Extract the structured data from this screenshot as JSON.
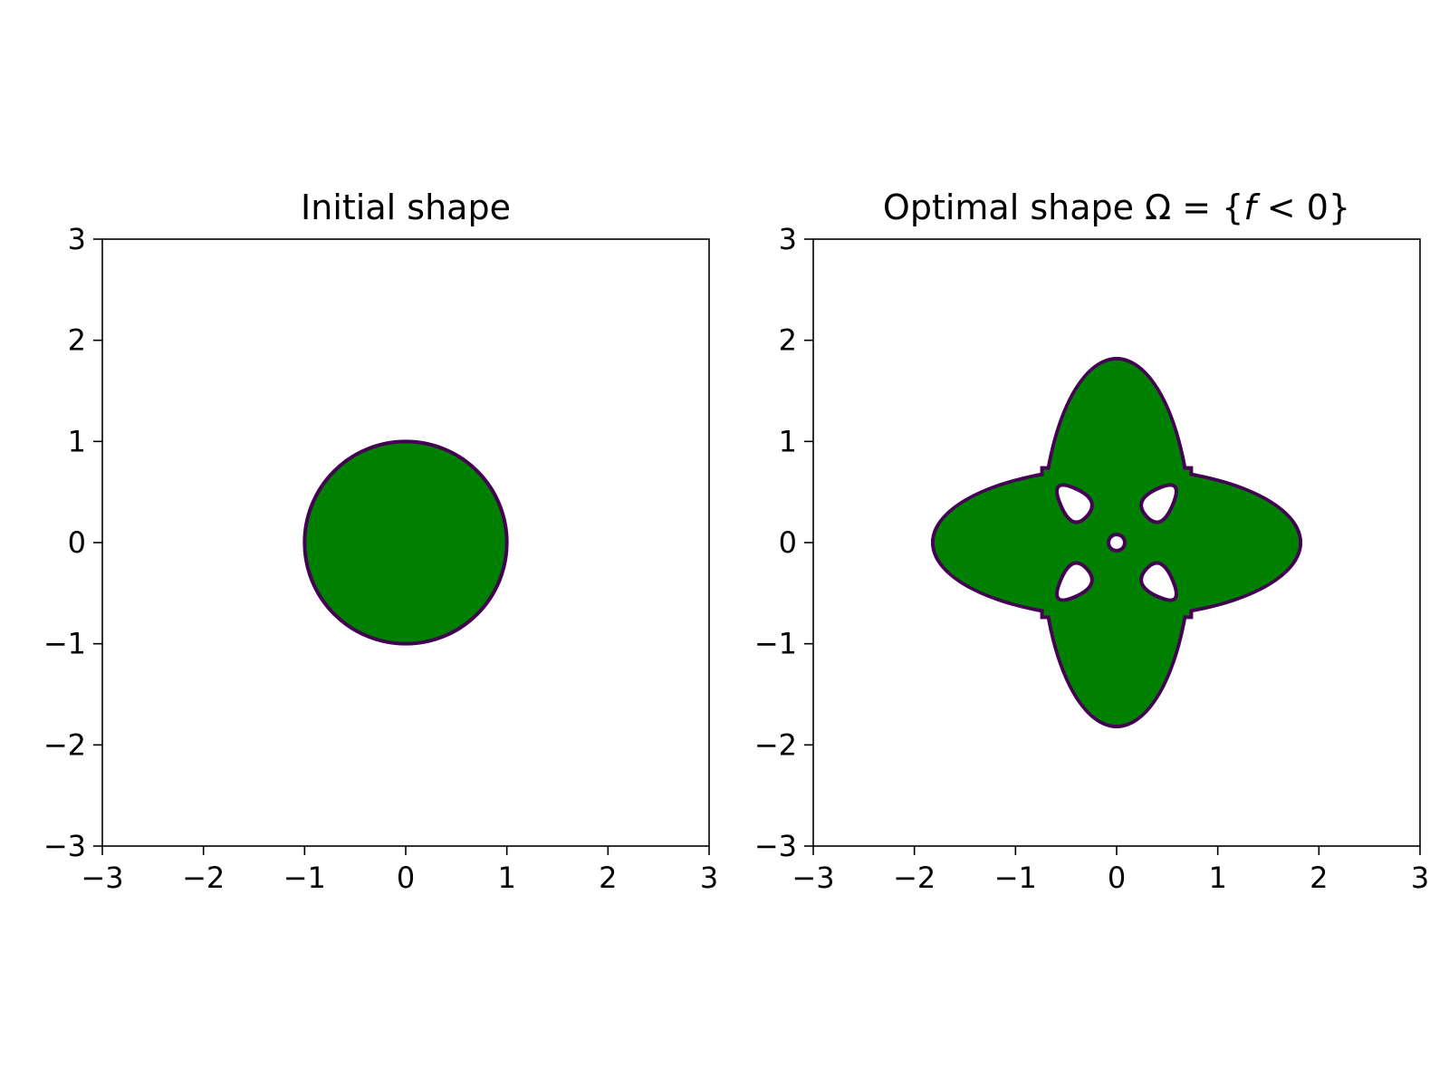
{
  "chart_data": [
    {
      "type": "contour",
      "title": "Initial shape",
      "xlim": [
        -3,
        3
      ],
      "ylim": [
        -3,
        3
      ],
      "xticks": [
        -3,
        -2,
        -1,
        0,
        1,
        2,
        3
      ],
      "yticks": [
        -3,
        -2,
        -1,
        0,
        1,
        2,
        3
      ],
      "grid": false,
      "fill_color": "#008000",
      "edge_color": "#440154",
      "shape": {
        "kind": "disk",
        "center": [
          0,
          0
        ],
        "radius": 1.0
      }
    },
    {
      "type": "contour",
      "title": "Optimal shape Ω = {f < 0}",
      "title_parts": [
        "Optimal shape ",
        "Ω",
        " = {",
        "f",
        " < 0}"
      ],
      "xlim": [
        -3,
        3
      ],
      "ylim": [
        -3,
        3
      ],
      "xticks": [
        -3,
        -2,
        -1,
        0,
        1,
        2,
        3
      ],
      "yticks": [
        -3,
        -2,
        -1,
        0,
        1,
        2,
        3
      ],
      "grid": false,
      "fill_color": "#008000",
      "edge_color": "#440154",
      "shape": {
        "kind": "four-lobed region with holes",
        "lobes": [
          {
            "direction": "up",
            "tip": [
              0,
              1.8
            ],
            "half_width": 0.72
          },
          {
            "direction": "down",
            "tip": [
              0,
              -1.8
            ],
            "half_width": 0.72
          },
          {
            "direction": "right",
            "tip": [
              1.8,
              0
            ],
            "half_width": 0.72
          },
          {
            "direction": "left",
            "tip": [
              -1.8,
              0
            ],
            "half_width": 0.72
          }
        ],
        "holes": [
          {
            "kind": "triangle",
            "vertices": [
              [
                -0.67,
                0.65
              ],
              [
                -0.44,
                0.1
              ],
              [
                -0.15,
                0.42
              ]
            ]
          },
          {
            "kind": "triangle",
            "vertices": [
              [
                0.67,
                0.65
              ],
              [
                0.44,
                0.1
              ],
              [
                0.15,
                0.42
              ]
            ]
          },
          {
            "kind": "triangle",
            "vertices": [
              [
                -0.67,
                -0.65
              ],
              [
                -0.44,
                -0.1
              ],
              [
                -0.15,
                -0.42
              ]
            ]
          },
          {
            "kind": "triangle",
            "vertices": [
              [
                0.67,
                -0.65
              ],
              [
                0.44,
                -0.1
              ],
              [
                0.15,
                -0.42
              ]
            ]
          },
          {
            "kind": "disk",
            "center": [
              0,
              0
            ],
            "radius": 0.08
          }
        ]
      }
    }
  ]
}
